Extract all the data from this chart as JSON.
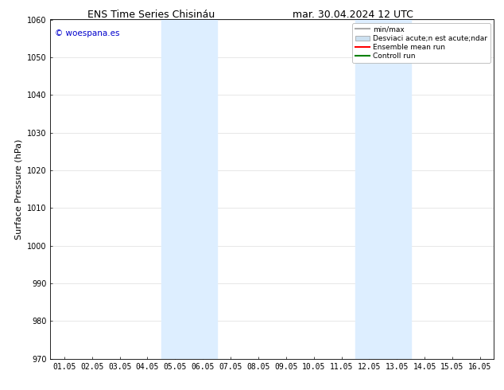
{
  "title_left": "ENS Time Series Chisináu",
  "title_right": "mar. 30.04.2024 12 UTC",
  "ylabel": "Surface Pressure (hPa)",
  "ylim": [
    970,
    1060
  ],
  "yticks": [
    970,
    980,
    990,
    1000,
    1010,
    1020,
    1030,
    1040,
    1050,
    1060
  ],
  "xtick_labels": [
    "01.05",
    "02.05",
    "03.05",
    "04.05",
    "05.05",
    "06.05",
    "07.05",
    "08.05",
    "09.05",
    "10.05",
    "11.05",
    "12.05",
    "13.05",
    "14.05",
    "15.05",
    "16.05"
  ],
  "xtick_positions": [
    0,
    1,
    2,
    3,
    4,
    5,
    6,
    7,
    8,
    9,
    10,
    11,
    12,
    13,
    14,
    15
  ],
  "xlim": [
    -0.5,
    15.5
  ],
  "shaded_regions": [
    {
      "xmin": 3.5,
      "xmax": 5.5,
      "color": "#ddeeff"
    },
    {
      "xmin": 10.5,
      "xmax": 12.5,
      "color": "#ddeeff"
    }
  ],
  "watermark_text": "© woespana.es",
  "watermark_color": "#0000cc",
  "legend_entries": [
    {
      "label": "min/max",
      "color": "#aaaaaa",
      "type": "line",
      "lw": 1.5
    },
    {
      "label": "Desviaci acute;n est acute;ndar",
      "color": "#cce0f0",
      "type": "patch"
    },
    {
      "label": "Ensemble mean run",
      "color": "red",
      "type": "line",
      "lw": 1.5
    },
    {
      "label": "Controll run",
      "color": "green",
      "type": "line",
      "lw": 1.5
    }
  ],
  "bg_color": "#ffffff",
  "plot_bg_color": "#ffffff",
  "title_fontsize": 9,
  "tick_fontsize": 7,
  "ylabel_fontsize": 8,
  "watermark_fontsize": 7.5,
  "legend_fontsize": 6.5
}
